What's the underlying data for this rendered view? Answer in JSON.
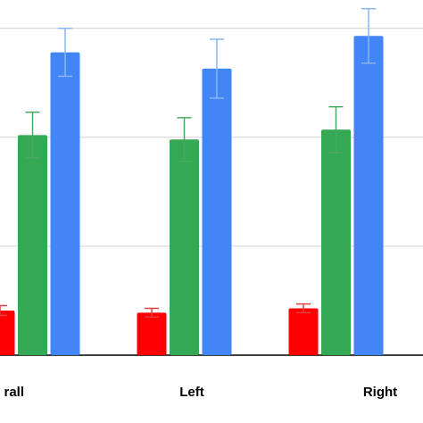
{
  "chart_data": {
    "type": "bar",
    "categories": [
      "rall",
      "Left",
      "Right"
    ],
    "series": [
      {
        "color": "#ff0000",
        "error_color": "#e04040",
        "values": [
          0.41,
          0.39,
          0.43
        ],
        "errors": [
          0.045,
          0.04,
          0.04
        ]
      },
      {
        "color": "#34a853",
        "error_color": "#4aa866",
        "values": [
          2.02,
          1.98,
          2.07
        ],
        "errors": [
          0.21,
          0.2,
          0.21
        ]
      },
      {
        "color": "#4285f4",
        "error_color": "#8ab6f0",
        "values": [
          2.78,
          2.63,
          2.93
        ],
        "errors": [
          0.22,
          0.27,
          0.25
        ]
      }
    ],
    "ylim": [
      0,
      3.26
    ],
    "yticks": [
      0,
      1,
      2,
      3
    ],
    "grid": true,
    "tick_labels": false
  }
}
